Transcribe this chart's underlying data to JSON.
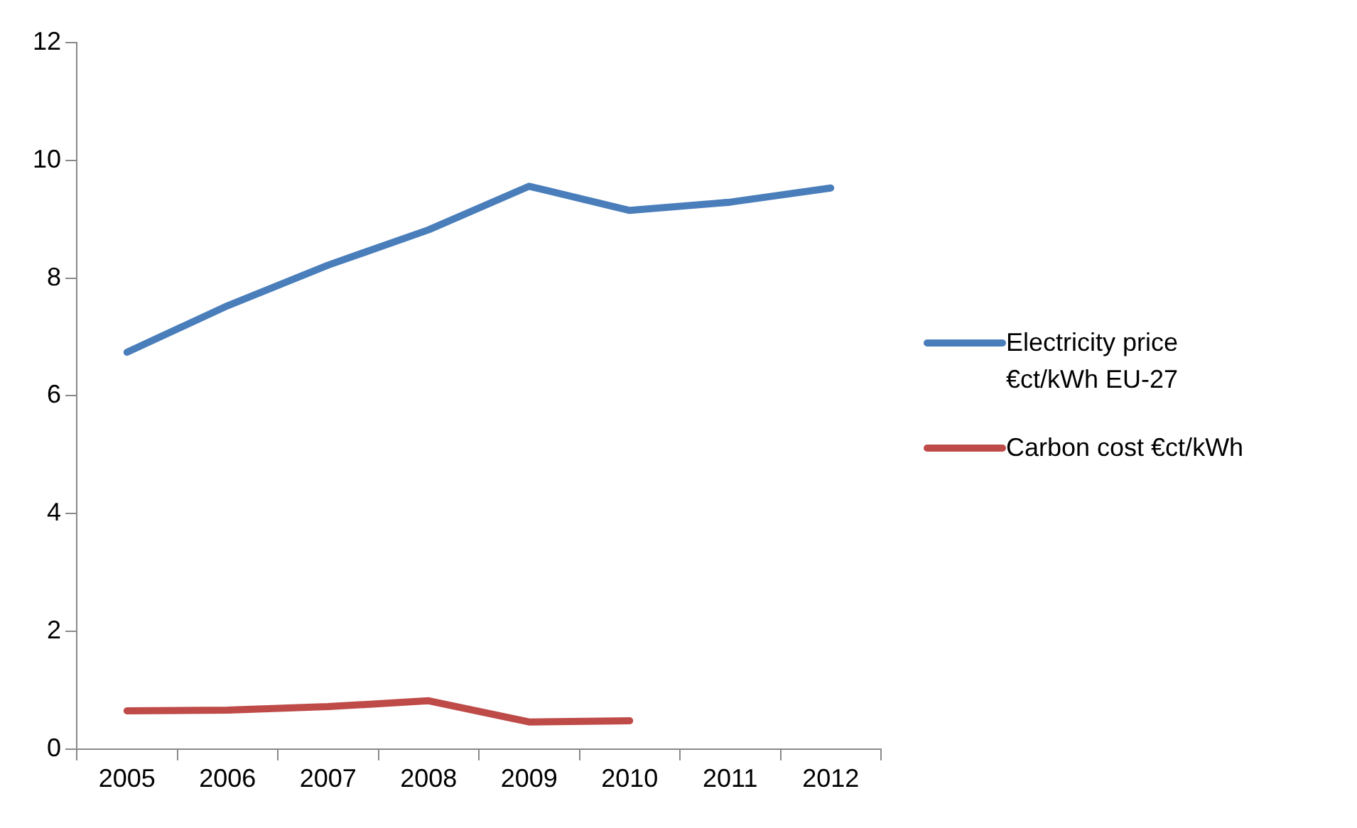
{
  "chart_data": {
    "type": "line",
    "categories": [
      "2005",
      "2006",
      "2007",
      "2008",
      "2009",
      "2010",
      "2011",
      "2012"
    ],
    "series": [
      {
        "name": "Electricity price €ct/kWh EU-27",
        "color": "#4a7ebb",
        "values": [
          6.74,
          7.53,
          8.22,
          8.82,
          9.56,
          9.15,
          9.29,
          9.53
        ]
      },
      {
        "name": "Carbon cost €ct/kWh",
        "color": "#be4b48",
        "values": [
          0.65,
          0.66,
          0.72,
          0.82,
          0.46,
          0.48,
          null,
          null
        ]
      }
    ],
    "ylim": [
      0,
      12
    ],
    "yticks": [
      0,
      2,
      4,
      6,
      8,
      10,
      12
    ],
    "grid": false,
    "legend": "right",
    "marker": "none",
    "line_style": "solid"
  }
}
